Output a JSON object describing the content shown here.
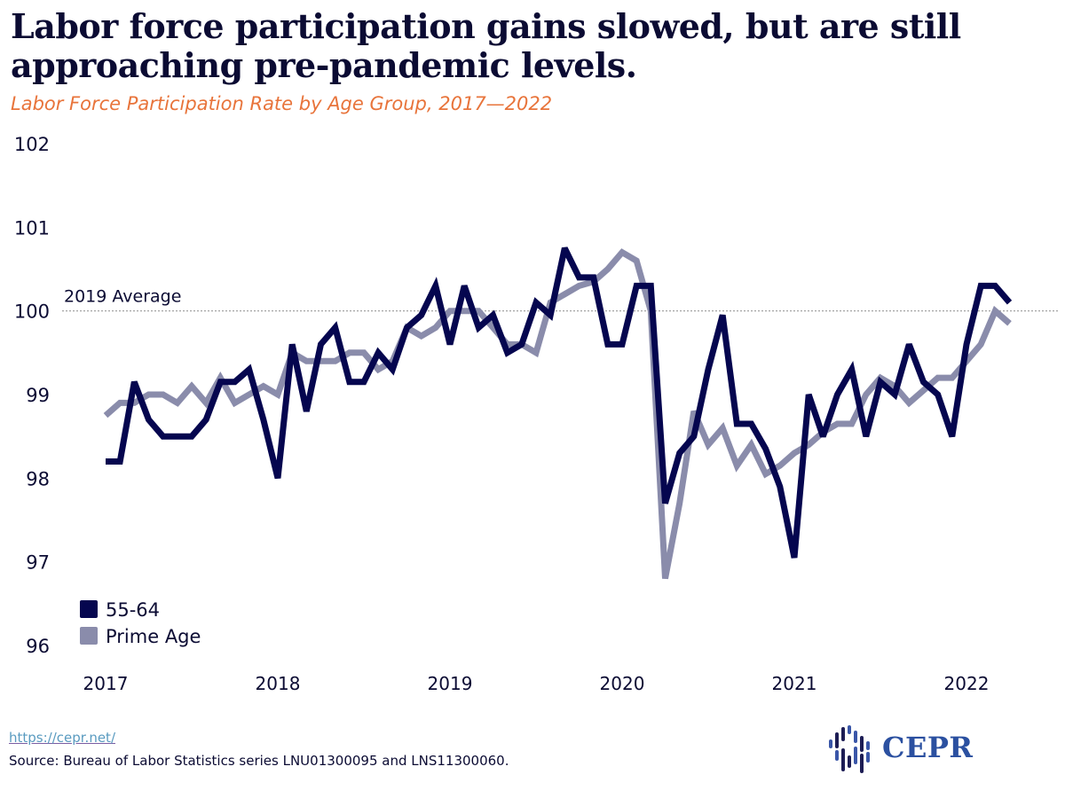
{
  "header": {
    "title": "Labor force participation gains slowed, but are still approaching pre-pandemic levels.",
    "subtitle": "Labor Force Participation Rate by Age Group, 2017—2022"
  },
  "footer": {
    "link": "https://cepr.net/",
    "source": "Source: Bureau of Labor Statistics series LNU01300095 and LNS11300060.",
    "logo_text": "CEPR",
    "logo_icon": "cepr-bars-logo-icon"
  },
  "colors": {
    "series_55_64": "#05064f",
    "series_prime": "#8a8cab",
    "title": "#0b0b33",
    "subtitle": "#e8743b",
    "logo": "#2b50a0"
  },
  "chart_data": {
    "type": "line",
    "title": "Labor force participation gains slowed, but are still approaching pre-pandemic levels.",
    "subtitle": "Labor Force Participation Rate by Age Group, 2017—2022",
    "xlabel": "",
    "ylabel": "",
    "ylim": [
      96,
      102
    ],
    "yticks": [
      96,
      97,
      98,
      99,
      100,
      101,
      102
    ],
    "xticks": [
      "2017",
      "2018",
      "2019",
      "2020",
      "2021",
      "2022"
    ],
    "x_start": "Jan 2017",
    "x_end": "Apr 2022",
    "frequency": "monthly",
    "grid": false,
    "legend_position": "bottom-left",
    "reference_line": {
      "value": 100,
      "label": "2019 Average",
      "style": "dotted"
    },
    "series": [
      {
        "name": "55-64",
        "values": [
          98.2,
          98.2,
          99.15,
          98.7,
          98.5,
          98.5,
          98.5,
          98.7,
          99.15,
          99.15,
          99.3,
          98.7,
          98.0,
          99.6,
          98.8,
          99.6,
          99.8,
          99.15,
          99.15,
          99.5,
          99.3,
          99.8,
          99.95,
          100.3,
          99.6,
          100.3,
          99.8,
          99.95,
          99.5,
          99.6,
          100.1,
          99.95,
          100.75,
          100.4,
          100.4,
          99.6,
          99.6,
          100.3,
          100.3,
          97.7,
          98.3,
          98.5,
          99.3,
          99.95,
          98.65,
          98.65,
          98.35,
          97.9,
          97.05,
          99.0,
          98.5,
          99.0,
          99.3,
          98.5,
          99.15,
          99.0,
          99.6,
          99.15,
          99.0,
          98.5,
          99.6,
          100.3,
          100.3,
          100.1
        ]
      },
      {
        "name": "Prime Age",
        "values": [
          98.75,
          98.9,
          98.9,
          99.0,
          99.0,
          98.9,
          99.1,
          98.9,
          99.2,
          98.9,
          99.0,
          99.1,
          99.0,
          99.5,
          99.4,
          99.4,
          99.4,
          99.5,
          99.5,
          99.3,
          99.4,
          99.8,
          99.7,
          99.8,
          100.0,
          100.0,
          100.0,
          99.8,
          99.6,
          99.6,
          99.5,
          100.1,
          100.2,
          100.3,
          100.35,
          100.5,
          100.7,
          100.6,
          100.0,
          96.8,
          97.7,
          98.8,
          98.4,
          98.6,
          98.15,
          98.4,
          98.05,
          98.15,
          98.3,
          98.4,
          98.55,
          98.65,
          98.65,
          99.0,
          99.2,
          99.1,
          98.9,
          99.05,
          99.2,
          99.2,
          99.4,
          99.6,
          100.0,
          99.85
        ]
      }
    ]
  }
}
